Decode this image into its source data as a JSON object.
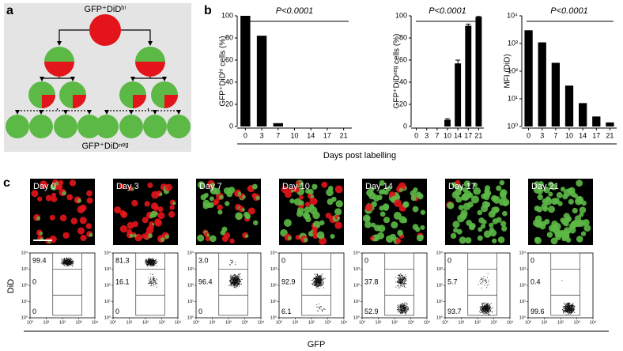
{
  "panels": [
    "a",
    "b",
    "c"
  ],
  "diagram": {
    "top_label": "GFP⁺DiDʰⁱ",
    "bottom_label": "GFP⁺DiDⁿᵉᵍ"
  },
  "chart_data": [
    {
      "type": "bar",
      "annotation": "P<0.0001",
      "y_label": "GFP⁺DiDʰⁱ cells (%)",
      "categories": [
        "0",
        "3",
        "7",
        "10",
        "14",
        "17",
        "21"
      ],
      "values": [
        100,
        82,
        3,
        0,
        0,
        0,
        0
      ],
      "color": "#000000",
      "ylim": [
        0,
        100
      ],
      "yticks": [
        0,
        20,
        40,
        60,
        80,
        100
      ]
    },
    {
      "type": "bar",
      "annotation": "P<0.0001",
      "y_label": "GFP⁺DiDⁿᵉᵍ cells (%)",
      "categories": [
        "0",
        "3",
        "7",
        "10",
        "14",
        "17",
        "21"
      ],
      "values": [
        0,
        0,
        0,
        6,
        57,
        91,
        99
      ],
      "errors": [
        0,
        0,
        0,
        1,
        3,
        1.5,
        0.5
      ],
      "color": "#000000",
      "ylim": [
        0,
        100
      ],
      "yticks": [
        0,
        20,
        40,
        60,
        80,
        100
      ]
    },
    {
      "type": "bar",
      "annotation": "P<0.0001",
      "y_label": "MFI (DiD)",
      "log_scale": true,
      "categories": [
        "0",
        "3",
        "7",
        "10",
        "14",
        "17",
        "21"
      ],
      "values": [
        3000,
        1100,
        200,
        30,
        7,
        2.3,
        1.4
      ],
      "color": "#000000",
      "ylim": [
        1,
        10000
      ],
      "yticks": [
        {
          "value": 1,
          "label": "10⁰"
        },
        {
          "value": 10,
          "label": "10¹"
        },
        {
          "value": 100,
          "label": "10²"
        },
        {
          "value": 1000,
          "label": "10³"
        },
        {
          "value": 10000,
          "label": "10⁴"
        }
      ]
    }
  ],
  "x_label": "Days post labelling",
  "micrographs": {
    "days": [
      "Day 0",
      "Day 3",
      "Day 7",
      "Day 10",
      "Day 14",
      "Day 17",
      "Day 21"
    ]
  },
  "flow": {
    "y_label": "DiD",
    "x_label": "GFP",
    "ticks": [
      {
        "value": 1,
        "label": "10⁰"
      },
      {
        "value": 10,
        "label": "10¹"
      },
      {
        "value": 100,
        "label": "10²"
      },
      {
        "value": 1000,
        "label": "10³"
      },
      {
        "value": 10000,
        "label": "10⁴"
      }
    ],
    "plots": [
      {
        "values": [
          99.4,
          0,
          0
        ],
        "value_labels": [
          "99.4",
          "0",
          "0"
        ]
      },
      {
        "values": [
          81.3,
          16.1,
          0
        ],
        "value_labels": [
          "81.3",
          "16.1",
          "0"
        ]
      },
      {
        "values": [
          3,
          96.4,
          0
        ],
        "value_labels": [
          "3.0",
          "96.4",
          "0"
        ]
      },
      {
        "values": [
          0,
          92.9,
          6.1
        ],
        "value_labels": [
          "0",
          "92.9",
          "6.1"
        ]
      },
      {
        "values": [
          0,
          37.8,
          52.9
        ],
        "value_labels": [
          "0",
          "37.8",
          "52.9"
        ]
      },
      {
        "values": [
          0,
          5.7,
          93.7
        ],
        "value_labels": [
          "0",
          "5.7",
          "93.7"
        ]
      },
      {
        "values": [
          0,
          0.4,
          99.6
        ],
        "value_labels": [
          "0",
          "0.4",
          "99.6"
        ]
      }
    ]
  }
}
